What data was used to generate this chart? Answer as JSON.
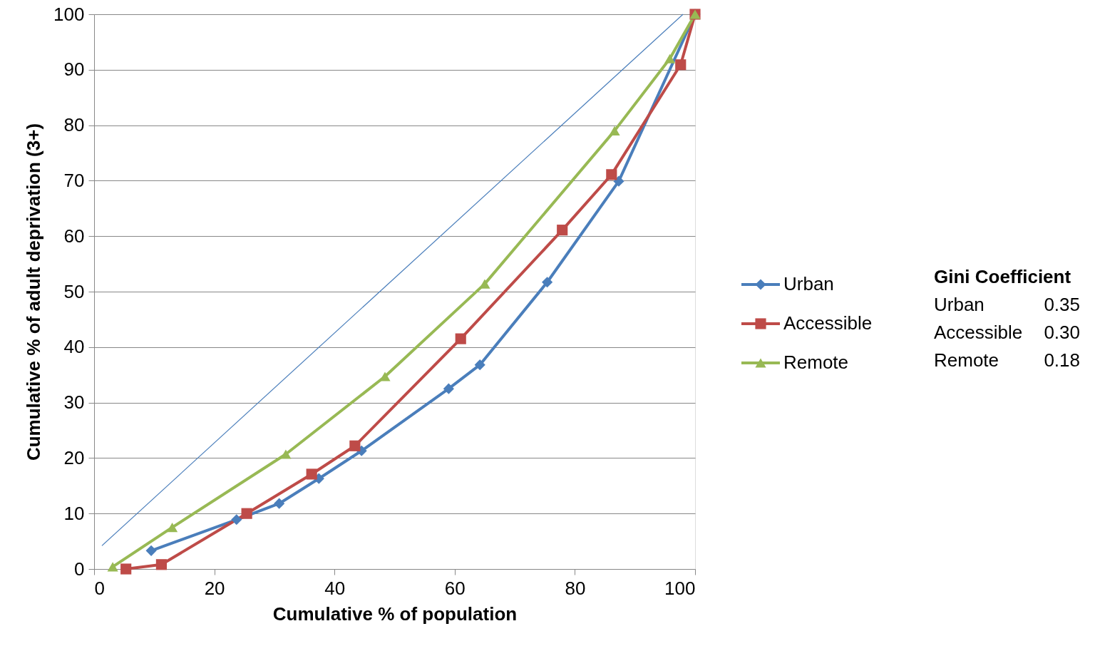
{
  "chart_data": {
    "type": "line",
    "xlabel": "Cumulative % of population",
    "ylabel": "Cumulative % of adult deprivation (3+)",
    "xlim": [
      0,
      100
    ],
    "xticks": [
      0,
      20,
      40,
      60,
      80,
      100
    ],
    "ylim": [
      0,
      100
    ],
    "yticks": [
      0,
      10,
      20,
      30,
      40,
      50,
      60,
      70,
      80,
      90,
      100
    ],
    "grid": "y",
    "legend": "right",
    "line_style": "solid",
    "series": [
      {
        "name": "Urban",
        "color": "#4a7ebb",
        "marker": "diamond",
        "x": [
          9.5,
          23.7,
          30.8,
          37.4,
          44.5,
          59.0,
          64.2,
          75.4,
          87.3,
          100
        ],
        "values": [
          3.3,
          8.9,
          11.8,
          16.3,
          21.3,
          32.5,
          36.8,
          51.7,
          69.9,
          100
        ]
      },
      {
        "name": "Accessible",
        "color": "#be4b48",
        "marker": "square",
        "x": [
          5.3,
          11.2,
          25.4,
          36.2,
          43.4,
          61.0,
          77.9,
          86.1,
          97.6,
          100
        ],
        "values": [
          0,
          0.8,
          10.0,
          17.1,
          22.2,
          41.5,
          61.1,
          71.1,
          90.9,
          100
        ]
      },
      {
        "name": "Remote",
        "color": "#98b954",
        "marker": "triangle",
        "x": [
          3.1,
          13.0,
          31.9,
          48.4,
          65.0,
          86.6,
          95.8,
          100
        ],
        "values": [
          0.4,
          7.5,
          20.7,
          34.7,
          51.4,
          79.0,
          92.0,
          100
        ]
      },
      {
        "type": "line",
        "color": "#4a7ebb",
        "marker": "none",
        "x": [
          1.3,
          98
        ],
        "values": [
          4.2,
          100
        ]
      }
    ],
    "annotations": [
      "Gini Coefficient",
      "Urban 0.35",
      "Accessible 0.30",
      "Remote 0.18"
    ]
  }
}
